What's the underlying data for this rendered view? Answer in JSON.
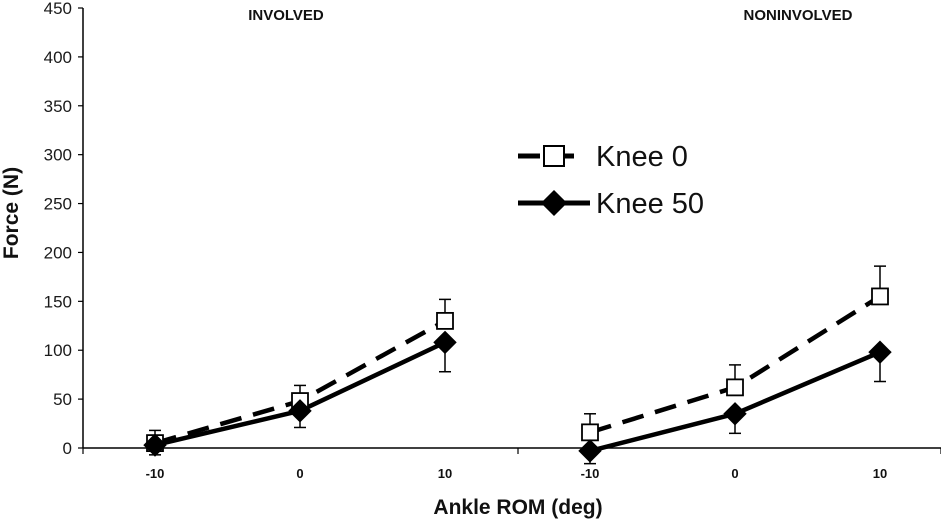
{
  "chart_data": {
    "type": "line",
    "ylabel": "Force (N)",
    "xlabel": "Ankle ROM (deg)",
    "ylim": [
      0,
      450
    ],
    "yticks": [
      0,
      50,
      100,
      150,
      200,
      250,
      300,
      350,
      400,
      450
    ],
    "grid": false,
    "legend_position": "center",
    "panels": [
      {
        "title": "INVOLVED",
        "x": [
          -10,
          0,
          10
        ],
        "series": [
          {
            "name": "Knee 0",
            "marker": "open-square",
            "line": "dashed",
            "color": "#000000",
            "values": [
              5,
              48,
              130
            ],
            "error": [
              13,
              16,
              22
            ]
          },
          {
            "name": "Knee 50",
            "marker": "filled-diamond",
            "line": "solid",
            "color": "#000000",
            "values": [
              3,
              38,
              108
            ],
            "error": [
              10,
              17,
              30
            ]
          }
        ]
      },
      {
        "title": "NONINVOLVED",
        "x": [
          -10,
          0,
          10
        ],
        "series": [
          {
            "name": "Knee 0",
            "marker": "open-square",
            "line": "dashed",
            "color": "#000000",
            "values": [
              16,
              62,
              155
            ],
            "error": [
              19,
              23,
              31
            ]
          },
          {
            "name": "Knee 50",
            "marker": "filled-diamond",
            "line": "solid",
            "color": "#000000",
            "values": [
              -3,
              35,
              98
            ],
            "error": [
              13,
              20,
              30
            ]
          }
        ]
      }
    ],
    "x_tick_labels": [
      "-10",
      "0",
      "10"
    ]
  }
}
